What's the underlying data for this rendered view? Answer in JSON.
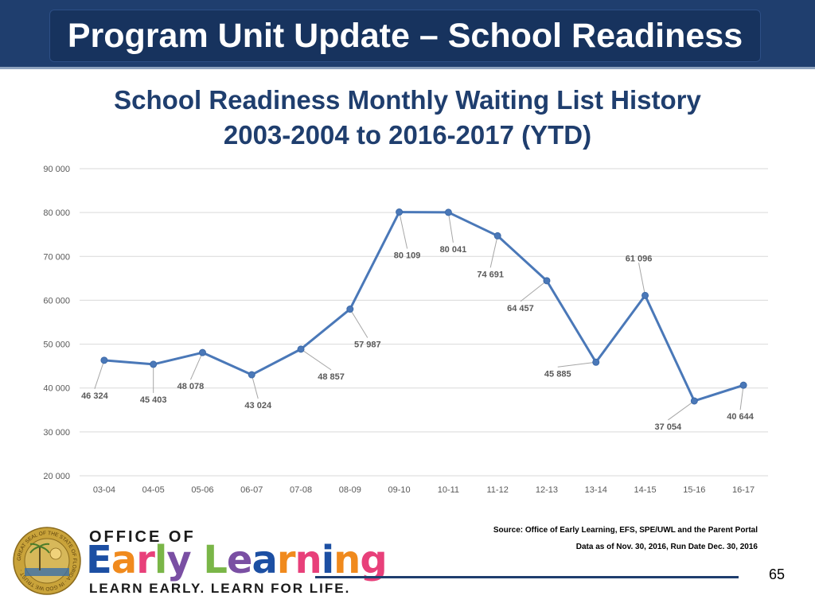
{
  "header": {
    "title": "Program Unit Update – School Readiness"
  },
  "chart_title": {
    "line1": "School Readiness Monthly Waiting List History",
    "line2": "2003-2004 to 2016-2017 (YTD)"
  },
  "chart_data": {
    "type": "line",
    "title": "School Readiness Monthly Waiting List History 2003-2004 to 2016-2017 (YTD)",
    "categories": [
      "03-04",
      "04-05",
      "05-06",
      "06-07",
      "07-08",
      "08-09",
      "09-10",
      "10-11",
      "11-12",
      "12-13",
      "13-14",
      "14-15",
      "15-16",
      "16-17"
    ],
    "values": [
      46324,
      45403,
      48078,
      43024,
      48857,
      57987,
      80109,
      80041,
      74691,
      64457,
      45885,
      61096,
      37054,
      40644
    ],
    "data_labels": [
      "46 324",
      "45 403",
      "48 078",
      "43 024",
      "48 857",
      "57 987",
      "80 109",
      "80 041",
      "74 691",
      "64 457",
      "45 885",
      "61 096",
      "37 054",
      "40 644"
    ],
    "y_ticks": [
      "20 000",
      "30 000",
      "40 000",
      "50 000",
      "60 000",
      "70 000",
      "80 000",
      "90 000"
    ],
    "y_tick_values": [
      20000,
      30000,
      40000,
      50000,
      60000,
      70000,
      80000,
      90000
    ],
    "ylim": [
      20000,
      90000
    ],
    "grid": true,
    "colors": {
      "line": "#4a78b8",
      "grid": "#d9d9d9",
      "labels": "#595959"
    }
  },
  "source": {
    "line1": "Source: Office of Early Learning, EFS, SPE/UWL and the Parent Portal",
    "line2": "Data as of  Nov. 30, 2016, Run Date Dec. 30, 2016"
  },
  "logo": {
    "office": "OFFICE OF",
    "word1": "Early",
    "word2": "Learning",
    "tagline": "LEARN EARLY. LEARN FOR LIFE.",
    "seal_text": "GREAT SEAL OF THE STATE OF FLORIDA · IN GOD WE TRUST ·"
  },
  "page_number": "65",
  "colors": {
    "header_bg": "#1f3e6e",
    "title_text": "#1f3e6e",
    "logo_blue": "#1c4fa3",
    "logo_orange": "#f08a1d",
    "logo_pink": "#e8407a",
    "logo_green": "#7ab648",
    "logo_purple": "#7a4fa3"
  }
}
